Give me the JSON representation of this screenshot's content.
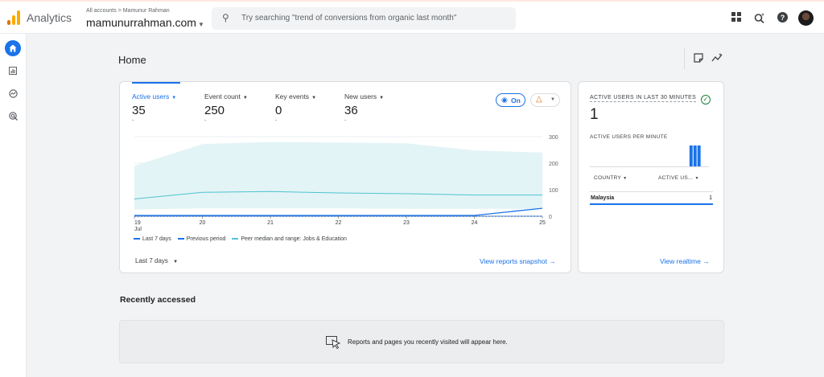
{
  "header": {
    "app_name": "Analytics",
    "breadcrumb": "All accounts > Mamunur Rahman",
    "property": "mamunurrahman.com",
    "search_placeholder": "Try searching \"trend of conversions from organic last month\"",
    "icons": [
      "apps-icon",
      "search-insights-icon",
      "help-icon",
      "avatar"
    ]
  },
  "nav": {
    "items": [
      "home-icon",
      "reports-icon",
      "explore-icon",
      "advertising-icon"
    ]
  },
  "page": {
    "title": "Home"
  },
  "metrics": [
    {
      "label": "Active users",
      "value": "35",
      "delta": "-",
      "selected": true
    },
    {
      "label": "Event count",
      "value": "250",
      "delta": "-"
    },
    {
      "label": "Key events",
      "value": "0",
      "delta": "-"
    },
    {
      "label": "New users",
      "value": "36",
      "delta": "-"
    }
  ],
  "ai_toggle": {
    "label": "On"
  },
  "chart_data": {
    "type": "line",
    "x": [
      "19",
      "20",
      "21",
      "22",
      "23",
      "24",
      "25"
    ],
    "x_sublabel": "Jul",
    "y_ticks": [
      "0",
      "100",
      "200",
      "300"
    ],
    "ylim": [
      0,
      300
    ],
    "y_axis_side": "right",
    "grid": true,
    "legend_position": "bottom-left",
    "series": [
      {
        "name": "Last 7 days",
        "style": "solid",
        "color": "#1a73e8",
        "values": [
          3,
          3,
          3,
          3,
          3,
          3,
          30
        ]
      },
      {
        "name": "Previous period",
        "style": "dashed",
        "color": "#1a73e8",
        "values": [
          0,
          0,
          0,
          0,
          0,
          0,
          0
        ]
      },
      {
        "name": "Peer median and range: Jobs & Education",
        "style": "solid",
        "color": "#4ec3cf",
        "values": [
          65,
          90,
          93,
          88,
          85,
          80,
          80
        ],
        "range_low": [
          25,
          30,
          30,
          30,
          28,
          28,
          28
        ],
        "range_high": [
          190,
          272,
          280,
          278,
          275,
          248,
          240
        ]
      }
    ]
  },
  "main_card": {
    "date_range": "Last 7 days",
    "view_link": "View reports snapshot →"
  },
  "realtime": {
    "title": "ACTIVE USERS IN LAST 30 MINUTES",
    "value": "1",
    "per_minute_label": "ACTIVE USERS PER MINUTE",
    "per_minute_values": [
      0,
      0,
      0,
      0,
      0,
      0,
      0,
      0,
      0,
      0,
      0,
      0,
      0,
      0,
      0,
      0,
      0,
      0,
      0,
      0,
      0,
      0,
      0,
      0,
      0,
      1,
      1,
      1,
      0,
      0
    ],
    "col_country": "COUNTRY",
    "col_users": "ACTIVE US...",
    "rows": [
      {
        "country": "Malaysia",
        "value": "1"
      }
    ],
    "view_link": "View realtime →"
  },
  "recent": {
    "title": "Recently accessed",
    "empty_text": "Reports and pages you recently visited will appear here."
  }
}
